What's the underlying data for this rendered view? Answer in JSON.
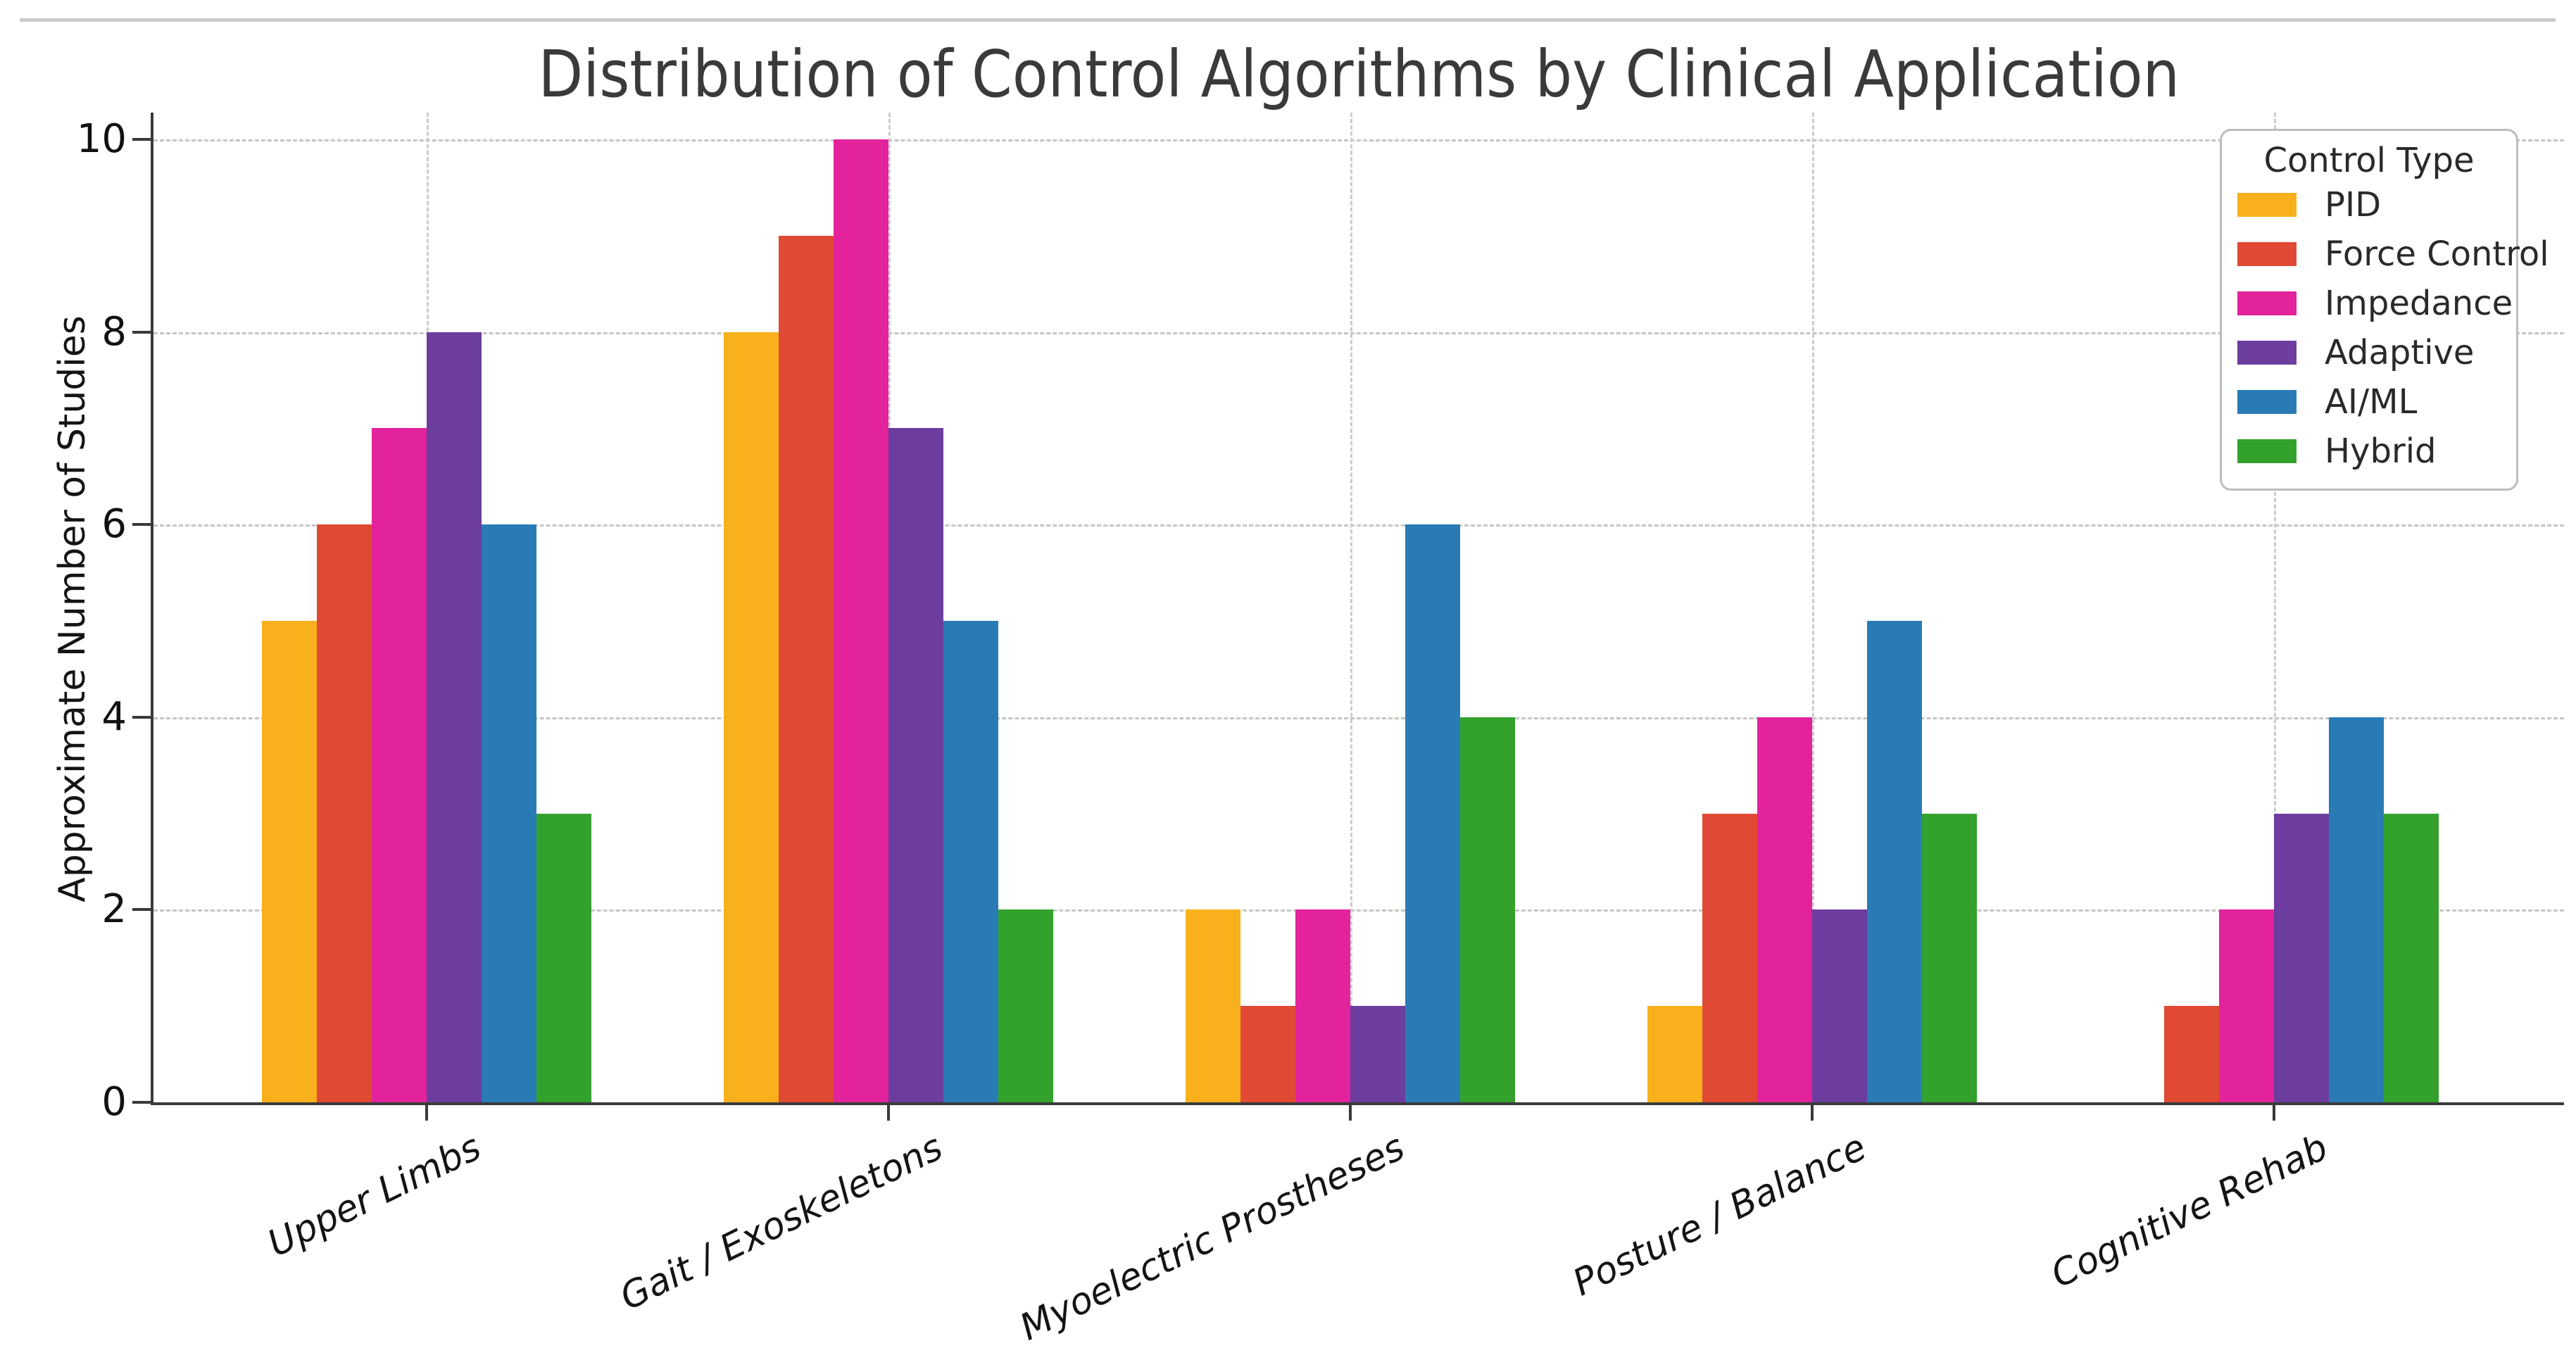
{
  "chart_data": {
    "type": "bar",
    "title": "Distribution of Control Algorithms by Clinical Application",
    "xlabel": "",
    "ylabel": "Approximate Number of Studies",
    "categories": [
      "Upper Limbs",
      "Gait / Exoskeletons",
      "Myoelectric Prostheses",
      "Posture / Balance",
      "Cognitive Rehab"
    ],
    "series": [
      {
        "name": "PID",
        "color": "#F8B11C",
        "values": [
          5,
          8,
          2,
          1,
          0
        ]
      },
      {
        "name": "Force Control",
        "color": "#E04A34",
        "values": [
          6,
          9,
          1,
          3,
          1
        ]
      },
      {
        "name": "Impedance",
        "color": "#E3239C",
        "values": [
          7,
          10,
          2,
          4,
          2
        ]
      },
      {
        "name": "Adaptive",
        "color": "#6C3D9E",
        "values": [
          8,
          7,
          1,
          2,
          3
        ]
      },
      {
        "name": "AI/ML",
        "color": "#2A7BB5",
        "values": [
          6,
          5,
          6,
          5,
          4
        ]
      },
      {
        "name": "Hybrid",
        "color": "#33A22D",
        "values": [
          3,
          2,
          4,
          3,
          3
        ]
      }
    ],
    "ylim": [
      0,
      10
    ],
    "yticks": [
      0,
      2,
      4,
      6,
      8,
      10
    ],
    "grid": true,
    "legend": {
      "title": "Control Type",
      "position": "upper right"
    },
    "colors": {
      "grid": "#c6c6c6",
      "spine": "#3a3a3a",
      "title_text": "#3a3a3a",
      "tick_text": "#141414",
      "legend_border": "#bdbdbd",
      "figure_top_border": "#cacaca"
    }
  }
}
